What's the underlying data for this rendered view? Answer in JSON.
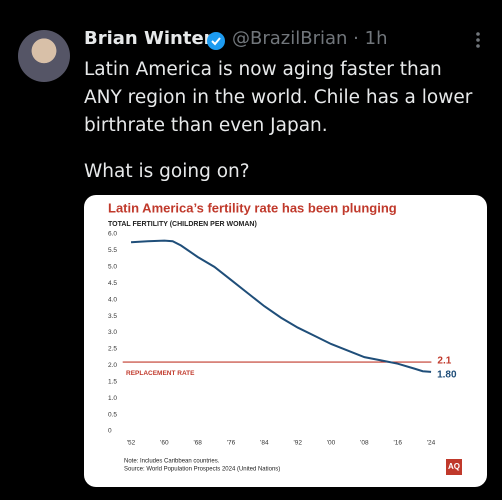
{
  "tweet": {
    "name": "Brian Winter",
    "handle": "@BrazilBrian",
    "separator": "·",
    "time": "1h",
    "text": "Latin America is now aging faster than ANY region in the world. Chile has a lower birthrate than even Japan.",
    "text2": "What is going on?"
  },
  "chart_data": {
    "type": "line",
    "title": "Latin America’s fertility rate has been plunging",
    "subtitle": "TOTAL FERTILITY (CHILDREN PER WOMAN)",
    "x": [
      1952,
      1956,
      1960,
      1962,
      1964,
      1968,
      1972,
      1976,
      1980,
      1984,
      1988,
      1992,
      1996,
      2000,
      2004,
      2008,
      2012,
      2016,
      2020,
      2022,
      2024
    ],
    "series": [
      {
        "name": "Latin America",
        "color": "#1f4e79",
        "values": [
          5.75,
          5.78,
          5.8,
          5.78,
          5.65,
          5.3,
          5.0,
          4.6,
          4.2,
          3.8,
          3.45,
          3.15,
          2.9,
          2.65,
          2.45,
          2.25,
          2.15,
          2.05,
          1.9,
          1.82,
          1.8
        ],
        "value_labels": [
          null,
          null,
          null,
          null,
          null,
          null,
          null,
          null,
          null,
          null,
          null,
          null,
          null,
          null,
          null,
          null,
          null,
          null,
          null,
          null,
          "1.80"
        ]
      }
    ],
    "reference_line": {
      "value": 2.1,
      "text": "REPLACEMENT RATE",
      "color": "#c0392b"
    },
    "xlim": [
      1950,
      2026
    ],
    "xticks": [
      {
        "value": 1952,
        "label": "'52"
      },
      {
        "value": 1960,
        "label": "'60"
      },
      {
        "value": 1968,
        "label": "'68"
      },
      {
        "value": 1976,
        "label": "'76"
      },
      {
        "value": 1984,
        "label": "'84"
      },
      {
        "value": 1992,
        "label": "'92"
      },
      {
        "value": 2000,
        "label": "'00"
      },
      {
        "value": 2008,
        "label": "'08"
      },
      {
        "value": 2016,
        "label": "'16"
      },
      {
        "value": 2024,
        "label": "'24"
      }
    ],
    "ylim": [
      0,
      6
    ],
    "yticks": [
      0,
      0.5,
      {
        "value": 1,
        "label": "1.0"
      },
      1.5,
      {
        "value": 2,
        "label": "2.0"
      },
      2.5,
      {
        "value": 3,
        "label": "3.0"
      },
      3.5,
      {
        "value": 4,
        "label": "4.0"
      },
      4.5,
      {
        "value": 5,
        "label": "5.0"
      },
      5.5,
      {
        "value": 6,
        "label": "6.0"
      }
    ],
    "grid": false,
    "note": "Note: Includes Caribbean countries.",
    "source": "Source: World Population Prospects 2024 (United Nations)",
    "logo": "AQ"
  }
}
